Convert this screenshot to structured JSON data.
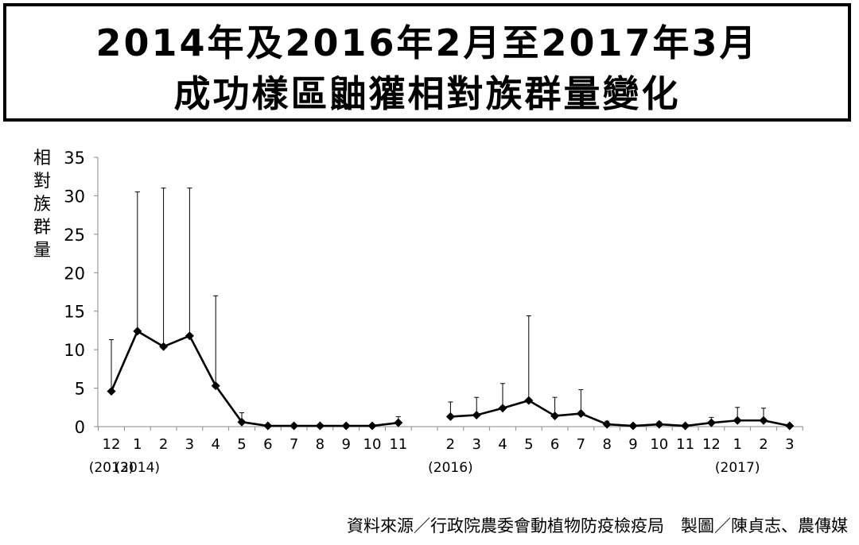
{
  "title": {
    "line1": "2014年及2016年2月至2017年3月",
    "line2": "成功樣區鼬獾相對族群量變化"
  },
  "footer": "資料來源／行政院農委會動植物防疫檢疫局　製圖／陳貞志、農傳媒",
  "chart_data": {
    "type": "line",
    "ylabel": "相對族群量",
    "ylim": [
      0,
      35
    ],
    "y_ticks": [
      0,
      5,
      10,
      15,
      20,
      25,
      30,
      35
    ],
    "grid": false,
    "marker": "diamond",
    "color": "#000000",
    "categories": [
      "12",
      "1",
      "2",
      "3",
      "4",
      "5",
      "6",
      "7",
      "8",
      "9",
      "10",
      "11",
      "",
      "2",
      "3",
      "4",
      "5",
      "6",
      "7",
      "8",
      "9",
      "10",
      "11",
      "12",
      "1",
      "2",
      "3"
    ],
    "year_labels": [
      {
        "index": 0,
        "text": "(2013)"
      },
      {
        "index": 1,
        "text": "(2014)"
      },
      {
        "index": 13,
        "text": "(2016)"
      },
      {
        "index": 24,
        "text": "(2017)"
      }
    ],
    "segments": [
      {
        "start_index": 0,
        "values": [
          4.6,
          12.4,
          10.4,
          11.8,
          5.3,
          0.6,
          0.1,
          0.1,
          0.1,
          0.1,
          0.1,
          0.5
        ],
        "error_upper": [
          11.3,
          30.5,
          31.0,
          31.0,
          17.0,
          1.8,
          0.1,
          0.1,
          0.1,
          0.1,
          0.1,
          1.3
        ]
      },
      {
        "start_index": 13,
        "values": [
          1.3,
          1.5,
          2.4,
          3.4,
          1.4,
          1.7,
          0.3,
          0.1,
          0.3,
          0.1,
          0.5,
          0.8,
          0.8,
          0.1
        ],
        "error_upper": [
          3.2,
          3.8,
          5.6,
          14.4,
          3.8,
          4.8,
          0.7,
          0.1,
          0.6,
          0.1,
          1.2,
          2.5,
          2.4,
          0.1
        ]
      }
    ]
  }
}
